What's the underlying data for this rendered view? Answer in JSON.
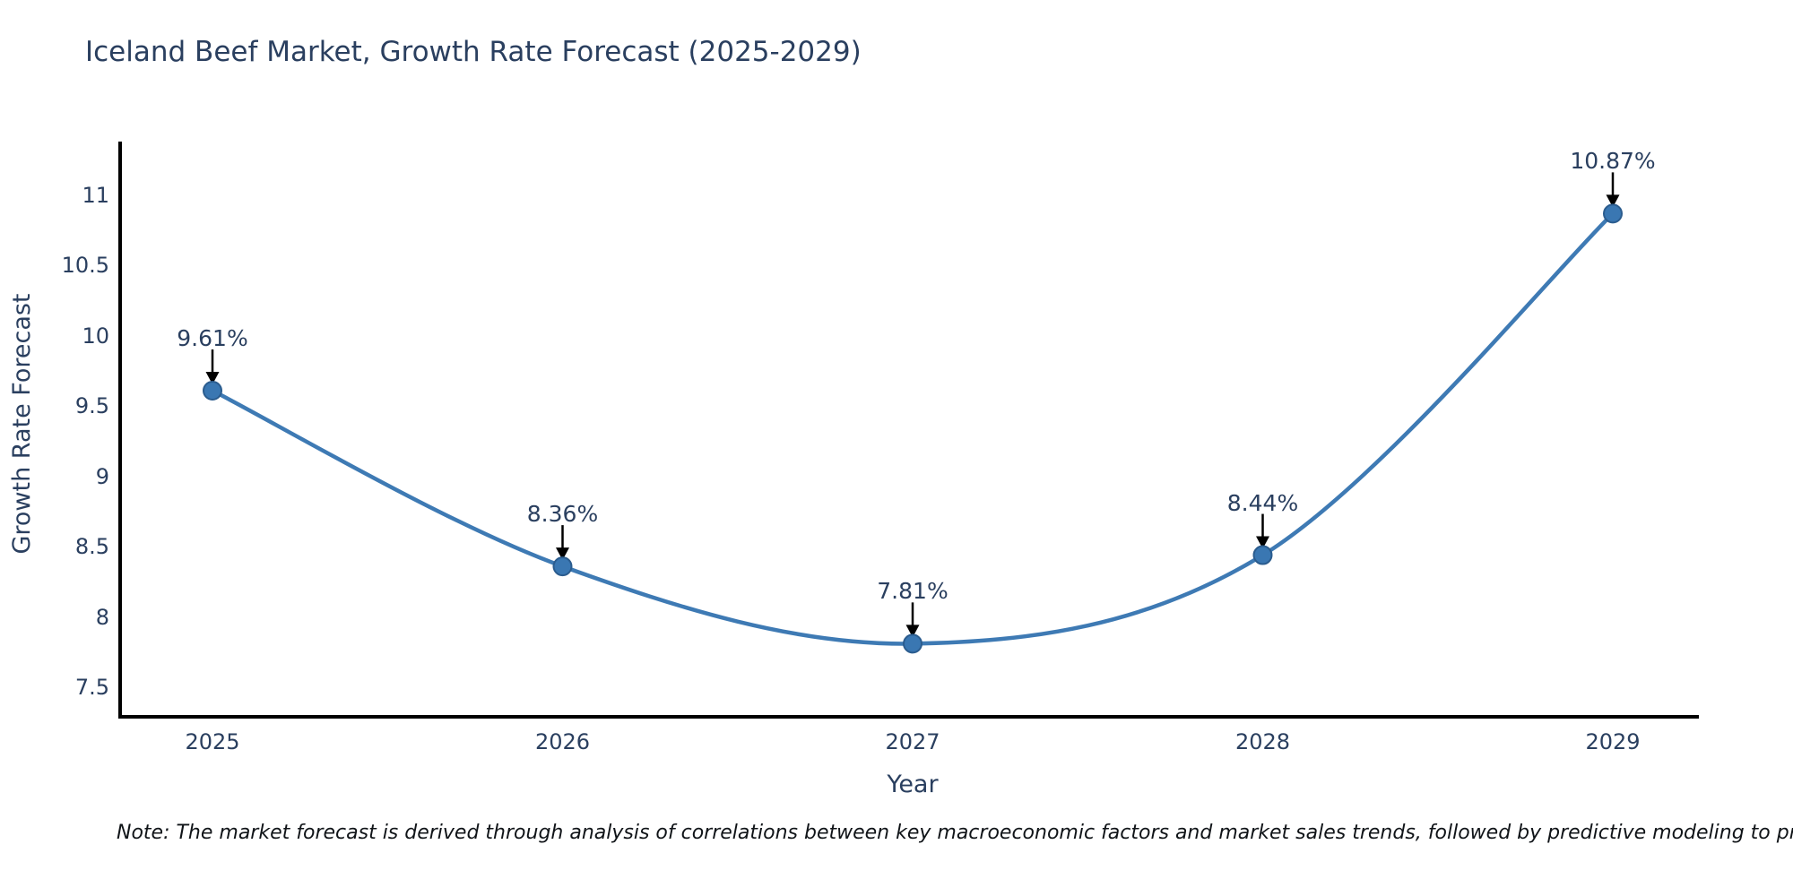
{
  "title": "Iceland Beef Market, Growth Rate Forecast (2025-2029)",
  "note": "Note: The market forecast is derived through analysis of correlations between key macroeconomic factors and market sales trends, followed by predictive modeling to project future sales performance.",
  "chart_data": {
    "type": "line",
    "title": "Iceland Beef Market, Growth Rate Forecast (2025-2029)",
    "xlabel": "Year",
    "ylabel": "Growth Rate Forecast",
    "x": [
      2025,
      2026,
      2027,
      2028,
      2029
    ],
    "series": [
      {
        "name": "Growth Rate Forecast",
        "values": [
          9.61,
          8.36,
          7.81,
          8.44,
          10.87
        ],
        "point_labels": [
          "9.61%",
          "8.36%",
          "7.81%",
          "8.44%",
          "10.87%"
        ]
      }
    ],
    "xticks": [
      2025,
      2026,
      2027,
      2028,
      2029
    ],
    "xtick_labels": [
      "2025",
      "2026",
      "2027",
      "2028",
      "2029"
    ],
    "yticks": [
      7.5,
      8,
      8.5,
      9,
      9.5,
      10,
      10.5,
      11
    ],
    "ytick_labels": [
      "7.5",
      "8",
      "8.5",
      "9",
      "9.5",
      "10",
      "10.5",
      "11"
    ],
    "ylim": [
      7.29,
      11.37
    ],
    "grid": false,
    "legend": "none",
    "line_shape": "spline",
    "marker": "circle",
    "annotation_arrows": true,
    "colors": {
      "line": "#3e7ab4",
      "marker_fill": "#3a77b2",
      "marker_edge": "#2b5c8e",
      "axis_line": "#000000",
      "chart_text": "#2a3f5f",
      "arrow": "#000000",
      "note_text": "#101418",
      "background": "#ffffff"
    }
  }
}
